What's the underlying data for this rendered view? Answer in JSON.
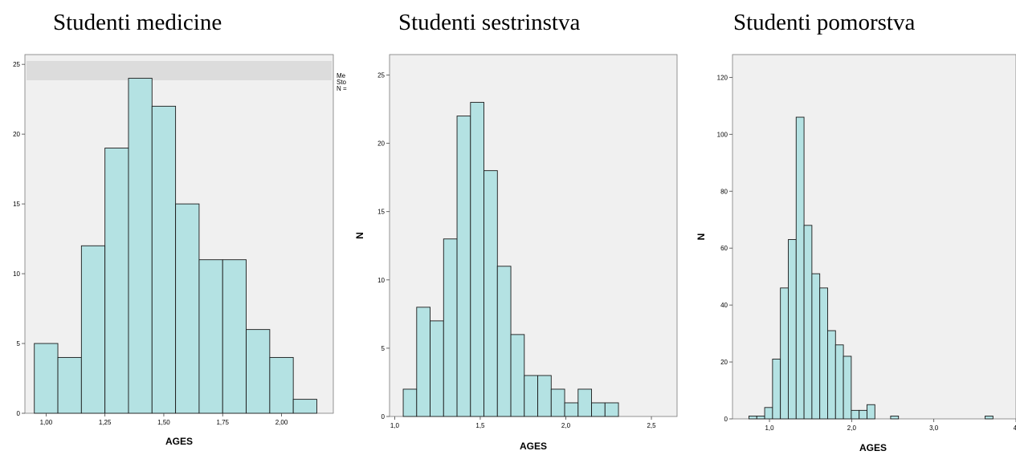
{
  "charts": [
    {
      "title": "Studenti medicine",
      "chart_data": {
        "type": "bar",
        "subtype": "histogram",
        "title": "Studenti medicine",
        "xlabel": "AGES",
        "ylabel": "",
        "xlim": [
          0.91,
          2.22
        ],
        "ylim": [
          0,
          25.7
        ],
        "xticks": [
          "1,00",
          "1,25",
          "1,50",
          "1,75",
          "2,00"
        ],
        "xtick_values": [
          1.0,
          1.25,
          1.5,
          1.75,
          2.0
        ],
        "yticks": [
          "0",
          "5",
          "10",
          "15",
          "20",
          "25"
        ],
        "ytick_values": [
          0,
          5,
          10,
          15,
          20,
          25
        ],
        "bin_start": 0.95,
        "bin_width": 0.1,
        "values": [
          5,
          4,
          12,
          19,
          24,
          22,
          15,
          11,
          11,
          6,
          4,
          1
        ],
        "legend_lines": [
          "Me",
          "Sto",
          "N ="
        ],
        "bar_color": "#b4e2e3"
      }
    },
    {
      "title": "Studenti sestrinstva",
      "chart_data": {
        "type": "bar",
        "subtype": "histogram",
        "title": "Studenti sestrinstva",
        "xlabel": "AGES",
        "ylabel": "N",
        "xlim": [
          0.97,
          2.65
        ],
        "ylim": [
          0,
          26.5
        ],
        "xticks": [
          "1,0",
          "1,5",
          "2,0",
          "2,5"
        ],
        "xtick_values": [
          1.0,
          1.5,
          2.0,
          2.5
        ],
        "yticks": [
          "0",
          "5",
          "10",
          "15",
          "20",
          "25"
        ],
        "ytick_values": [
          0,
          5,
          10,
          15,
          20,
          25
        ],
        "bin_start": 1.05,
        "bin_width": 0.0786,
        "values": [
          2,
          8,
          7,
          13,
          22,
          23,
          18,
          11,
          6,
          3,
          3,
          2,
          1,
          2,
          1,
          1
        ],
        "bar_color": "#b4e2e3"
      }
    },
    {
      "title": "Studenti pomorstva",
      "chart_data": {
        "type": "bar",
        "subtype": "histogram",
        "title": "Studenti pomorstva",
        "xlabel": "AGES",
        "ylabel": "N",
        "xlim": [
          0.55,
          4.0
        ],
        "ylim": [
          0,
          128
        ],
        "xticks": [
          "1,0",
          "2,0",
          "3,0",
          "4,"
        ],
        "xtick_values": [
          1.0,
          2.0,
          3.0,
          4.0
        ],
        "yticks": [
          "0",
          "20",
          "40",
          "60",
          "80",
          "100",
          "120"
        ],
        "ytick_values": [
          0,
          20,
          40,
          60,
          80,
          100,
          120
        ],
        "bin_start": 0.75,
        "bin_width": 0.0958,
        "values": [
          1,
          1,
          4,
          21,
          46,
          63,
          106,
          68,
          51,
          46,
          31,
          26,
          22,
          3,
          3,
          5,
          0,
          0,
          1,
          0,
          0,
          0,
          0,
          0,
          0,
          0,
          0,
          0,
          0,
          0,
          1
        ],
        "bar_color": "#b4e2e3"
      }
    }
  ]
}
